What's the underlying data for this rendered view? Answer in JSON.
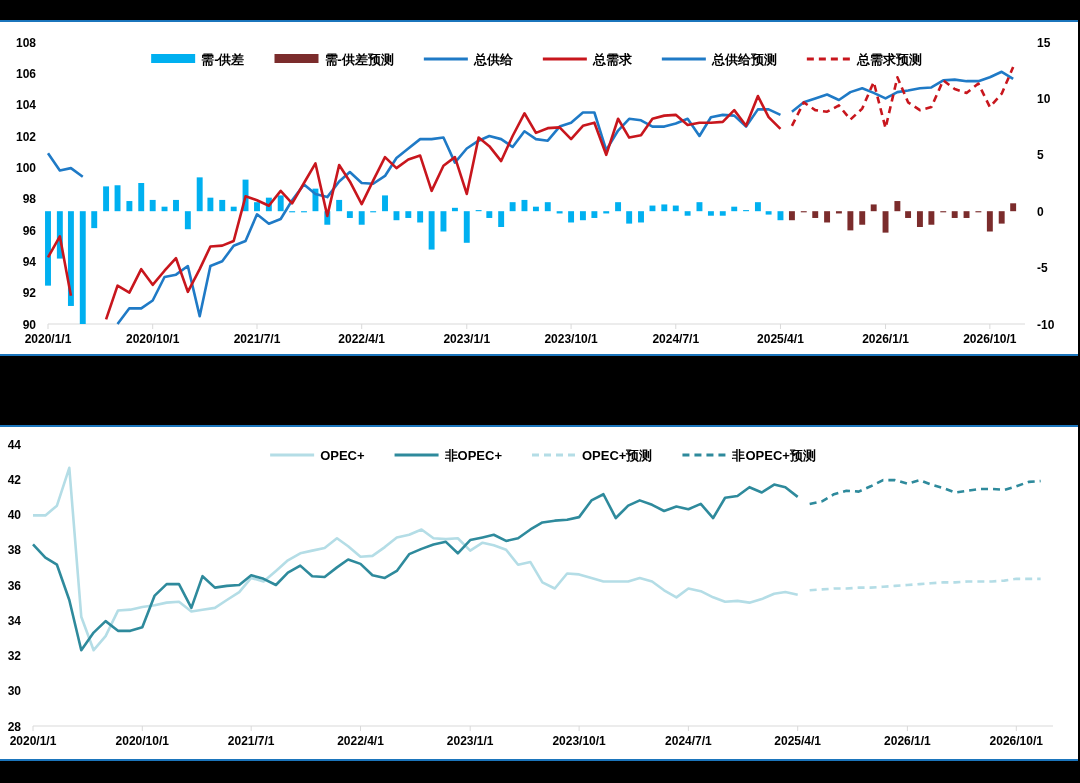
{
  "chart_data": [
    {
      "type": "line",
      "x": [
        "2020-01",
        "2020-02",
        "2020-03",
        "2020-04",
        "2020-05",
        "2020-06",
        "2020-07",
        "2020-08",
        "2020-09",
        "2020-10",
        "2020-11",
        "2020-12",
        "2021-01",
        "2021-02",
        "2021-03",
        "2021-04",
        "2021-05",
        "2021-06",
        "2021-07",
        "2021-08",
        "2021-09",
        "2021-10",
        "2021-11",
        "2021-12",
        "2022-01",
        "2022-02",
        "2022-03",
        "2022-04",
        "2022-05",
        "2022-06",
        "2022-07",
        "2022-08",
        "2022-09",
        "2022-10",
        "2022-11",
        "2022-12",
        "2023-01",
        "2023-02",
        "2023-03",
        "2023-04",
        "2023-05",
        "2023-06",
        "2023-07",
        "2023-08",
        "2023-09",
        "2023-10",
        "2023-11",
        "2023-12",
        "2024-01",
        "2024-02",
        "2024-03",
        "2024-04",
        "2024-05",
        "2024-06",
        "2024-07",
        "2024-08",
        "2024-09",
        "2024-10",
        "2024-11",
        "2024-12",
        "2025-01",
        "2025-02",
        "2025-03",
        "2025-04",
        "2025-05",
        "2025-06",
        "2025-07",
        "2025-08",
        "2025-09",
        "2025-10",
        "2025-11",
        "2025-12",
        "2026-01",
        "2026-02",
        "2026-03",
        "2026-04",
        "2026-05",
        "2026-06",
        "2026-07",
        "2026-08",
        "2026-09",
        "2026-10",
        "2026-11",
        "2026-12"
      ],
      "xlim": [
        "2020-01-01",
        "2027-01-01"
      ],
      "xticks": [
        {
          "value": "2020-01-01",
          "label": "2020/1/1"
        },
        {
          "value": "2020-10-01",
          "label": "2020/10/1"
        },
        {
          "value": "2021-07-01",
          "label": "2021/7/1"
        },
        {
          "value": "2022-04-01",
          "label": "2022/4/1"
        },
        {
          "value": "2023-01-01",
          "label": "2023/1/1"
        },
        {
          "value": "2023-10-01",
          "label": "2023/10/1"
        },
        {
          "value": "2024-07-01",
          "label": "2024/7/1"
        },
        {
          "value": "2025-04-01",
          "label": "2025/4/1"
        },
        {
          "value": "2026-01-01",
          "label": "2026/1/1"
        },
        {
          "value": "2026-10-01",
          "label": "2026/10/1"
        }
      ],
      "ylim": [
        90,
        108
      ],
      "yticks": [
        90,
        92,
        94,
        96,
        98,
        100,
        102,
        104,
        106,
        108
      ],
      "y2lim": [
        -10,
        15
      ],
      "y2ticks": [
        -10,
        -5,
        0,
        5,
        10,
        15
      ],
      "grid": false,
      "legend": "top",
      "series": [
        {
          "name": "需-供差",
          "type": "bar",
          "axis": "y2",
          "color": "#00b0f0",
          "values": [
            -6.6,
            -4.2,
            -8.4,
            -10,
            -1.5,
            2.2,
            2.3,
            0.9,
            2.5,
            1.0,
            0.4,
            1.0,
            -1.6,
            3.0,
            1.2,
            1.0,
            0.4,
            2.8,
            0.8,
            1.2,
            1.4,
            -0.1,
            -0.1,
            2.0,
            -1.2,
            1.0,
            -0.6,
            -1.2,
            -0.1,
            1.4,
            -0.8,
            -0.6,
            -1.0,
            -3.4,
            -1.8,
            0.3,
            -2.8,
            0.1,
            -0.6,
            -1.4,
            0.8,
            1.0,
            0.4,
            0.8,
            -0.2,
            -1.0,
            -0.8,
            -0.6,
            -0.2,
            0.8,
            -1.1,
            -1.0,
            0.5,
            0.6,
            0.5,
            -0.4,
            0.8,
            -0.4,
            -0.4,
            0.4,
            0.1,
            0.8,
            -0.3,
            -0.8,
            null,
            null,
            null,
            null,
            null,
            null,
            null,
            null,
            null,
            null,
            null,
            null,
            null,
            null,
            null,
            null,
            null,
            null,
            null,
            null
          ]
        },
        {
          "name": "需-供差预测",
          "type": "bar",
          "axis": "y2",
          "color": "#7b2c2c",
          "values": [
            null,
            null,
            null,
            null,
            null,
            null,
            null,
            null,
            null,
            null,
            null,
            null,
            null,
            null,
            null,
            null,
            null,
            null,
            null,
            null,
            null,
            null,
            null,
            null,
            null,
            null,
            null,
            null,
            null,
            null,
            null,
            null,
            null,
            null,
            null,
            null,
            null,
            null,
            null,
            null,
            null,
            null,
            null,
            null,
            null,
            null,
            null,
            null,
            null,
            null,
            null,
            null,
            null,
            null,
            null,
            null,
            null,
            null,
            null,
            null,
            null,
            null,
            null,
            null,
            -0.8,
            -0.1,
            -0.6,
            -1.0,
            -0.2,
            -1.7,
            -1.2,
            0.6,
            -1.9,
            0.9,
            -0.6,
            -1.4,
            -1.2,
            -0.1,
            -0.6,
            -0.6,
            -0.1,
            -1.8,
            -1.1,
            0.7
          ]
        },
        {
          "name": "总供给",
          "color": "#1f7ac6",
          "values": [
            100.9,
            99.8,
            99.95,
            99.4,
            null,
            null,
            90.0,
            91.0,
            91.0,
            91.5,
            93.0,
            93.15,
            93.7,
            90.5,
            93.7,
            94.0,
            95.0,
            95.3,
            97.0,
            96.4,
            96.7,
            97.9,
            98.9,
            98.3,
            98.1,
            99.1,
            99.7,
            99.0,
            98.95,
            99.45,
            100.6,
            101.2,
            101.8,
            101.8,
            101.9,
            100.3,
            101.2,
            101.7,
            102.0,
            101.8,
            101.3,
            102.3,
            101.8,
            101.7,
            102.6,
            102.85,
            103.5,
            103.5,
            101.1,
            102.35,
            103.1,
            103.0,
            102.6,
            102.6,
            102.8,
            103.1,
            102.0,
            103.2,
            103.35,
            103.3,
            102.6,
            103.7,
            103.7,
            103.35,
            null,
            null,
            null,
            null,
            null,
            null,
            null,
            null,
            null,
            null,
            null,
            null,
            null,
            null,
            null,
            null,
            null,
            null,
            null,
            null
          ]
        },
        {
          "name": "总需求",
          "color": "#c8161d",
          "values": [
            94.25,
            95.6,
            91.8,
            null,
            null,
            90.3,
            92.45,
            92.0,
            93.5,
            92.5,
            93.4,
            94.2,
            92.05,
            93.5,
            94.95,
            95.0,
            95.3,
            98.15,
            97.9,
            97.55,
            98.5,
            97.7,
            99.0,
            100.25,
            96.9,
            100.15,
            99.1,
            97.65,
            99.15,
            100.65,
            99.95,
            100.5,
            100.75,
            98.5,
            100.1,
            100.65,
            98.3,
            101.9,
            101.35,
            100.4,
            102.0,
            103.45,
            102.2,
            102.5,
            102.55,
            101.8,
            102.65,
            102.85,
            100.8,
            103.1,
            101.9,
            102.05,
            103.1,
            103.3,
            103.35,
            102.7,
            102.85,
            102.85,
            102.9,
            103.65,
            102.65,
            104.55,
            103.2,
            102.45,
            null,
            null,
            null,
            null,
            null,
            null,
            null,
            null,
            null,
            null,
            null,
            null,
            null,
            null,
            null,
            null,
            null,
            null,
            null,
            null
          ]
        },
        {
          "name": "总供给预测",
          "color": "#1f7ac6",
          "values": [
            null,
            null,
            null,
            null,
            null,
            null,
            null,
            null,
            null,
            null,
            null,
            null,
            null,
            null,
            null,
            null,
            null,
            null,
            null,
            null,
            null,
            null,
            null,
            null,
            null,
            null,
            null,
            null,
            null,
            null,
            null,
            null,
            null,
            null,
            null,
            null,
            null,
            null,
            null,
            null,
            null,
            null,
            null,
            null,
            null,
            null,
            null,
            null,
            null,
            null,
            null,
            null,
            null,
            null,
            null,
            null,
            null,
            null,
            null,
            null,
            null,
            null,
            null,
            null,
            103.55,
            104.15,
            104.4,
            104.65,
            104.3,
            104.8,
            105.05,
            104.75,
            104.4,
            104.8,
            104.9,
            105.05,
            105.1,
            105.55,
            105.6,
            105.5,
            105.5,
            105.75,
            106.1,
            105.65
          ]
        },
        {
          "name": "总需求预测",
          "line_style": "dashed",
          "color": "#c8161d",
          "values": [
            null,
            null,
            null,
            null,
            null,
            null,
            null,
            null,
            null,
            null,
            null,
            null,
            null,
            null,
            null,
            null,
            null,
            null,
            null,
            null,
            null,
            null,
            null,
            null,
            null,
            null,
            null,
            null,
            null,
            null,
            null,
            null,
            null,
            null,
            null,
            null,
            null,
            null,
            null,
            null,
            null,
            null,
            null,
            null,
            null,
            null,
            null,
            null,
            null,
            null,
            null,
            null,
            null,
            null,
            null,
            null,
            null,
            null,
            null,
            null,
            null,
            null,
            null,
            null,
            102.65,
            104.15,
            103.65,
            103.55,
            103.95,
            103.05,
            103.75,
            105.45,
            102.5,
            105.75,
            104.15,
            103.65,
            103.85,
            105.55,
            105.0,
            104.75,
            105.35,
            103.85,
            104.7,
            106.4
          ]
        }
      ]
    },
    {
      "type": "line",
      "x": [
        "2020-01",
        "2020-02",
        "2020-03",
        "2020-04",
        "2020-05",
        "2020-06",
        "2020-07",
        "2020-08",
        "2020-09",
        "2020-10",
        "2020-11",
        "2020-12",
        "2021-01",
        "2021-02",
        "2021-03",
        "2021-04",
        "2021-05",
        "2021-06",
        "2021-07",
        "2021-08",
        "2021-09",
        "2021-10",
        "2021-11",
        "2021-12",
        "2022-01",
        "2022-02",
        "2022-03",
        "2022-04",
        "2022-05",
        "2022-06",
        "2022-07",
        "2022-08",
        "2022-09",
        "2022-10",
        "2022-11",
        "2022-12",
        "2023-01",
        "2023-02",
        "2023-03",
        "2023-04",
        "2023-05",
        "2023-06",
        "2023-07",
        "2023-08",
        "2023-09",
        "2023-10",
        "2023-11",
        "2023-12",
        "2024-01",
        "2024-02",
        "2024-03",
        "2024-04",
        "2024-05",
        "2024-06",
        "2024-07",
        "2024-08",
        "2024-09",
        "2024-10",
        "2024-11",
        "2024-12",
        "2025-01",
        "2025-02",
        "2025-03",
        "2025-04",
        "2025-05",
        "2025-06",
        "2025-07",
        "2025-08",
        "2025-09",
        "2025-10",
        "2025-11",
        "2025-12",
        "2026-01",
        "2026-02",
        "2026-03",
        "2026-04",
        "2026-05",
        "2026-06",
        "2026-07",
        "2026-08",
        "2026-09",
        "2026-10",
        "2026-11",
        "2026-12"
      ],
      "xlim": [
        "2020-01-01",
        "2027-01-01"
      ],
      "xticks": [
        {
          "value": "2020-01-01",
          "label": "2020/1/1"
        },
        {
          "value": "2020-10-01",
          "label": "2020/10/1"
        },
        {
          "value": "2021-07-01",
          "label": "2021/7/1"
        },
        {
          "value": "2022-04-01",
          "label": "2022/4/1"
        },
        {
          "value": "2023-01-01",
          "label": "2023/1/1"
        },
        {
          "value": "2023-10-01",
          "label": "2023/10/1"
        },
        {
          "value": "2024-07-01",
          "label": "2024/7/1"
        },
        {
          "value": "2025-04-01",
          "label": "2025/4/1"
        },
        {
          "value": "2026-01-01",
          "label": "2026/1/1"
        },
        {
          "value": "2026-10-01",
          "label": "2026/10/1"
        }
      ],
      "ylim": [
        28,
        44
      ],
      "yticks": [
        28,
        30,
        32,
        34,
        36,
        38,
        40,
        42,
        44
      ],
      "grid": false,
      "legend": "top",
      "series": [
        {
          "name": "OPEC+",
          "color": "#b4dde6",
          "values": [
            39.95,
            39.95,
            40.5,
            42.65,
            34.2,
            32.3,
            33.1,
            34.55,
            34.6,
            34.75,
            34.85,
            35.0,
            35.05,
            34.5,
            34.6,
            34.7,
            35.15,
            35.6,
            36.4,
            36.2,
            36.8,
            37.4,
            37.8,
            37.95,
            38.1,
            38.65,
            38.2,
            37.6,
            37.65,
            38.15,
            38.7,
            38.85,
            39.15,
            38.65,
            38.6,
            38.65,
            37.95,
            38.4,
            38.25,
            38.0,
            37.15,
            37.3,
            36.15,
            35.8,
            36.65,
            36.6,
            36.4,
            36.2,
            36.2,
            36.2,
            36.4,
            36.2,
            35.7,
            35.3,
            35.8,
            35.65,
            35.3,
            35.05,
            35.1,
            35.0,
            35.2,
            35.5,
            35.6,
            35.45,
            null,
            null,
            null,
            null,
            null,
            null,
            null,
            null,
            null,
            null,
            null,
            null,
            null,
            null,
            null,
            null,
            null,
            null,
            null,
            null
          ]
        },
        {
          "name": "非OPEC+",
          "color": "#2e8a9c",
          "values": [
            38.3,
            37.55,
            37.15,
            35.15,
            32.3,
            33.3,
            33.95,
            33.4,
            33.4,
            33.6,
            35.4,
            36.05,
            36.05,
            34.7,
            36.5,
            35.85,
            35.95,
            36.0,
            36.55,
            36.35,
            36.0,
            36.7,
            37.1,
            36.5,
            36.45,
            37.0,
            37.45,
            37.2,
            36.55,
            36.4,
            36.8,
            37.75,
            38.05,
            38.3,
            38.45,
            37.8,
            38.55,
            38.7,
            38.85,
            38.5,
            38.65,
            39.15,
            39.55,
            39.65,
            39.7,
            39.85,
            40.8,
            41.15,
            39.8,
            40.5,
            40.8,
            40.55,
            40.2,
            40.45,
            40.3,
            40.6,
            39.8,
            40.95,
            41.05,
            41.55,
            41.25,
            41.7,
            41.55,
            41.0,
            null,
            null,
            null,
            null,
            null,
            null,
            null,
            null,
            null,
            null,
            null,
            null,
            null,
            null,
            null,
            null,
            null,
            null,
            null,
            null
          ]
        },
        {
          "name": "OPEC+预测",
          "line_style": "dashed",
          "color": "#b4dde6",
          "values": [
            null,
            null,
            null,
            null,
            null,
            null,
            null,
            null,
            null,
            null,
            null,
            null,
            null,
            null,
            null,
            null,
            null,
            null,
            null,
            null,
            null,
            null,
            null,
            null,
            null,
            null,
            null,
            null,
            null,
            null,
            null,
            null,
            null,
            null,
            null,
            null,
            null,
            null,
            null,
            null,
            null,
            null,
            null,
            null,
            null,
            null,
            null,
            null,
            null,
            null,
            null,
            null,
            null,
            null,
            null,
            null,
            null,
            null,
            null,
            null,
            null,
            null,
            null,
            null,
            35.7,
            35.75,
            35.8,
            35.8,
            35.85,
            35.85,
            35.9,
            35.95,
            36.0,
            36.05,
            36.1,
            36.15,
            36.15,
            36.2,
            36.2,
            36.2,
            36.25,
            36.35,
            36.35,
            36.35
          ]
        },
        {
          "name": "非OPEC+预测",
          "line_style": "dashed",
          "color": "#2e8a9c",
          "values": [
            null,
            null,
            null,
            null,
            null,
            null,
            null,
            null,
            null,
            null,
            null,
            null,
            null,
            null,
            null,
            null,
            null,
            null,
            null,
            null,
            null,
            null,
            null,
            null,
            null,
            null,
            null,
            null,
            null,
            null,
            null,
            null,
            null,
            null,
            null,
            null,
            null,
            null,
            null,
            null,
            null,
            null,
            null,
            null,
            null,
            null,
            null,
            null,
            null,
            null,
            null,
            null,
            null,
            null,
            null,
            null,
            null,
            null,
            null,
            null,
            null,
            null,
            null,
            null,
            40.6,
            40.75,
            41.15,
            41.35,
            41.3,
            41.6,
            41.95,
            41.95,
            41.75,
            41.95,
            41.7,
            41.5,
            41.25,
            41.35,
            41.45,
            41.45,
            41.4,
            41.6,
            41.85,
            41.9
          ]
        }
      ]
    }
  ]
}
